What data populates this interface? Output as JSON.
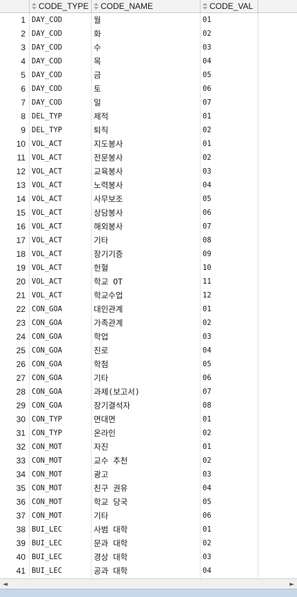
{
  "columns": [
    {
      "label": "CODE_TYPE"
    },
    {
      "label": "CODE_NAME"
    },
    {
      "label": "CODE_VAL"
    }
  ],
  "rows": [
    {
      "n": "1",
      "type": "DAY_COD",
      "name": "월",
      "val": "01"
    },
    {
      "n": "2",
      "type": "DAY_COD",
      "name": "화",
      "val": "02"
    },
    {
      "n": "3",
      "type": "DAY_COD",
      "name": "수",
      "val": "03"
    },
    {
      "n": "4",
      "type": "DAY_COD",
      "name": "목",
      "val": "04"
    },
    {
      "n": "5",
      "type": "DAY_COD",
      "name": "금",
      "val": "05"
    },
    {
      "n": "6",
      "type": "DAY_COD",
      "name": "토",
      "val": "06"
    },
    {
      "n": "7",
      "type": "DAY_COD",
      "name": "일",
      "val": "07"
    },
    {
      "n": "8",
      "type": "DEL_TYP",
      "name": "제적",
      "val": "01"
    },
    {
      "n": "9",
      "type": "DEL_TYP",
      "name": "퇴직",
      "val": "02"
    },
    {
      "n": "10",
      "type": "VOL_ACT",
      "name": "지도봉사",
      "val": "01"
    },
    {
      "n": "11",
      "type": "VOL_ACT",
      "name": "전문봉사",
      "val": "02"
    },
    {
      "n": "12",
      "type": "VOL_ACT",
      "name": "교육봉사",
      "val": "03"
    },
    {
      "n": "13",
      "type": "VOL_ACT",
      "name": "노력봉사",
      "val": "04"
    },
    {
      "n": "14",
      "type": "VOL_ACT",
      "name": "사무보조",
      "val": "05"
    },
    {
      "n": "15",
      "type": "VOL_ACT",
      "name": "상담봉사",
      "val": "06"
    },
    {
      "n": "16",
      "type": "VOL_ACT",
      "name": "해외봉사",
      "val": "07"
    },
    {
      "n": "17",
      "type": "VOL_ACT",
      "name": "기타",
      "val": "08"
    },
    {
      "n": "18",
      "type": "VOL_ACT",
      "name": "장기기증",
      "val": "09"
    },
    {
      "n": "19",
      "type": "VOL_ACT",
      "name": "헌혈",
      "val": "10"
    },
    {
      "n": "20",
      "type": "VOL_ACT",
      "name": "학교 OT",
      "val": "11"
    },
    {
      "n": "21",
      "type": "VOL_ACT",
      "name": "학교수업",
      "val": "12"
    },
    {
      "n": "22",
      "type": "CON_GOA",
      "name": "대인관계",
      "val": "01"
    },
    {
      "n": "23",
      "type": "CON_GOA",
      "name": "가족관계",
      "val": "02"
    },
    {
      "n": "24",
      "type": "CON_GOA",
      "name": "학업",
      "val": "03"
    },
    {
      "n": "25",
      "type": "CON_GOA",
      "name": "진로",
      "val": "04"
    },
    {
      "n": "26",
      "type": "CON_GOA",
      "name": "학점",
      "val": "05"
    },
    {
      "n": "27",
      "type": "CON_GOA",
      "name": "기타",
      "val": "06"
    },
    {
      "n": "28",
      "type": "CON_GOA",
      "name": "과제(보고서)",
      "val": "07"
    },
    {
      "n": "29",
      "type": "CON_GOA",
      "name": "장기결석자",
      "val": "08"
    },
    {
      "n": "30",
      "type": "CON_TYP",
      "name": "면대면",
      "val": "01"
    },
    {
      "n": "31",
      "type": "CON_TYP",
      "name": "온라인",
      "val": "02"
    },
    {
      "n": "32",
      "type": "CON_MOT",
      "name": "자진",
      "val": "01"
    },
    {
      "n": "33",
      "type": "CON_MOT",
      "name": "교수 추천",
      "val": "02"
    },
    {
      "n": "34",
      "type": "CON_MOT",
      "name": "광고",
      "val": "03"
    },
    {
      "n": "35",
      "type": "CON_MOT",
      "name": "친구 권유",
      "val": "04"
    },
    {
      "n": "36",
      "type": "CON_MOT",
      "name": "학교 당국",
      "val": "05"
    },
    {
      "n": "37",
      "type": "CON_MOT",
      "name": "기타",
      "val": "06"
    },
    {
      "n": "38",
      "type": "BUI_LEC",
      "name": "사범 대학",
      "val": "01"
    },
    {
      "n": "39",
      "type": "BUI_LEC",
      "name": "문과 대학",
      "val": "02"
    },
    {
      "n": "40",
      "type": "BUI_LEC",
      "name": "경상 대학",
      "val": "03"
    },
    {
      "n": "41",
      "type": "BUI_LEC",
      "name": "공과 대학",
      "val": "04"
    }
  ],
  "scrollbar": {
    "left_arrow": "◄",
    "right_arrow": "►"
  }
}
